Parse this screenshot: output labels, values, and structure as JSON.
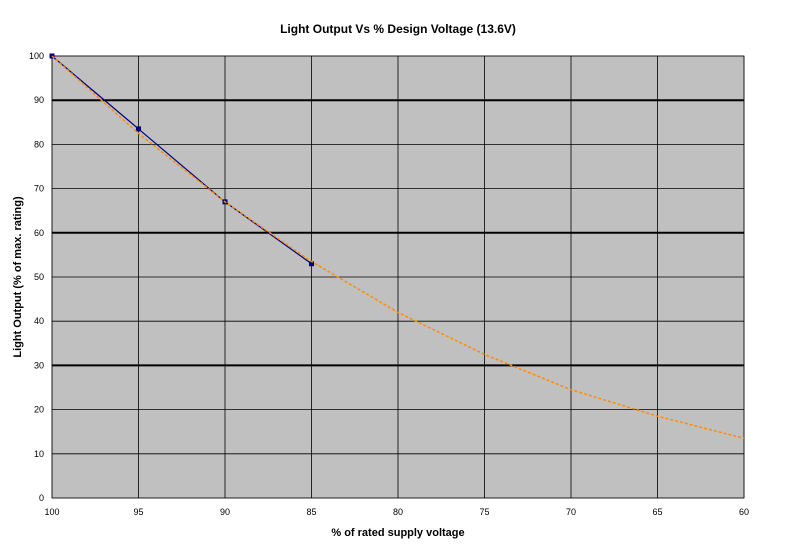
{
  "chart_data": {
    "type": "line",
    "title": "Light Output Vs % Design  Voltage (13.6V)",
    "xlabel": "% of rated supply voltage",
    "ylabel": "Light Output (% of max. rating)",
    "x_ticks": [
      "100",
      "95",
      "90",
      "85",
      "80",
      "75",
      "70",
      "65",
      "60"
    ],
    "y_ticks": [
      "0",
      "10",
      "20",
      "30",
      "40",
      "50",
      "60",
      "70",
      "80",
      "90",
      "100"
    ],
    "xlim": [
      100,
      60
    ],
    "ylim": [
      0,
      100
    ],
    "x_reversed": true,
    "grid": true,
    "legend": "none",
    "series": [
      {
        "type": "line-with-markers",
        "x": [
          100,
          95,
          90,
          85
        ],
        "y": [
          100,
          83.5,
          67,
          53
        ],
        "color": "#000080",
        "marker_color": "#000080"
      },
      {
        "type": "dashed-line",
        "x": [
          100,
          95,
          90,
          85,
          80,
          75,
          70,
          65,
          60
        ],
        "y": [
          100,
          82.5,
          67,
          53.5,
          42,
          32.5,
          24.5,
          18.5,
          13.5
        ],
        "color": "#ff8c00"
      }
    ],
    "colors": {
      "plot_background": "#c0c0c0",
      "grid": "#000000"
    }
  }
}
